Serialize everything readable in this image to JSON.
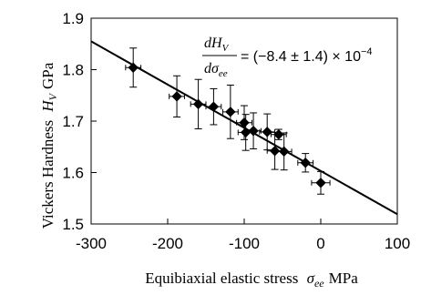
{
  "chart_data": {
    "type": "scatter",
    "title": "",
    "xlabel_text": "Equibiaxial elastic stress",
    "xlabel_symbol": "σ",
    "xlabel_subscript": "ee",
    "xlabel_unit": "MPa",
    "ylabel_text": "Vickers Hardness",
    "ylabel_symbol": "H",
    "ylabel_subscript": "V",
    "ylabel_unit": "GPa",
    "xlim": [
      -300,
      100
    ],
    "ylim": [
      1.5,
      1.9
    ],
    "xticks": [
      -300,
      -200,
      -100,
      0,
      100
    ],
    "yticks": [
      1.5,
      1.6,
      1.7,
      1.8,
      1.9
    ],
    "xtick_labels": [
      "-300",
      "-200",
      "-100",
      "0",
      "100"
    ],
    "ytick_labels": [
      "1.5",
      "1.6",
      "1.7",
      "1.8",
      "1.9"
    ],
    "grid": false,
    "legend": false,
    "marker": "diamond",
    "marker_color": "#000000",
    "points": [
      {
        "x": -245,
        "y": 1.804,
        "xerr": 10,
        "yerr": 0.038
      },
      {
        "x": -188,
        "y": 1.748,
        "xerr": 10,
        "yerr": 0.04
      },
      {
        "x": -160,
        "y": 1.733,
        "xerr": 10,
        "yerr": 0.048
      },
      {
        "x": -140,
        "y": 1.728,
        "xerr": 10,
        "yerr": 0.035
      },
      {
        "x": -118,
        "y": 1.718,
        "xerr": 10,
        "yerr": 0.052
      },
      {
        "x": -100,
        "y": 1.697,
        "xerr": 10,
        "yerr": 0.033
      },
      {
        "x": -98,
        "y": 1.678,
        "xerr": 10,
        "yerr": 0.035
      },
      {
        "x": -88,
        "y": 1.681,
        "xerr": 10,
        "yerr": 0.035
      },
      {
        "x": -70,
        "y": 1.679,
        "xerr": 10,
        "yerr": 0.035
      },
      {
        "x": -55,
        "y": 1.674,
        "xerr": 10,
        "yerr": 0.01
      },
      {
        "x": -60,
        "y": 1.642,
        "xerr": 10,
        "yerr": 0.036
      },
      {
        "x": -48,
        "y": 1.641,
        "xerr": 10,
        "yerr": 0.036
      },
      {
        "x": -20,
        "y": 1.619,
        "xerr": 10,
        "yerr": 0.018
      },
      {
        "x": 0,
        "y": 1.58,
        "xerr": 12,
        "yerr": 0.022
      }
    ],
    "fit_line": {
      "x": [
        -300,
        100
      ],
      "y": [
        1.855,
        1.519
      ]
    },
    "annotation": {
      "numerator": "dH",
      "numerator_sub": "V",
      "denominator": "dσ",
      "denominator_sub": "ee",
      "rhs": "= (−8.4 ± 1.4) × 10",
      "exponent": "−4"
    }
  }
}
